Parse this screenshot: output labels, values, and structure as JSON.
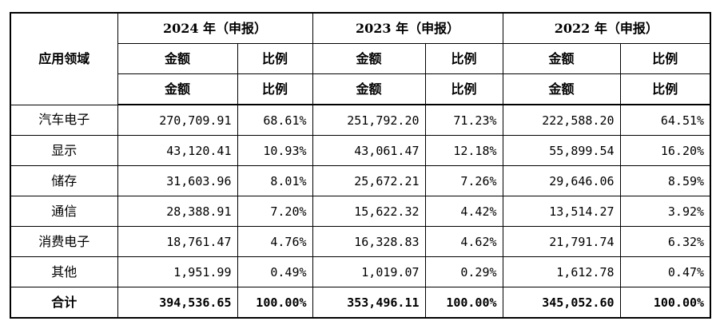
{
  "table": {
    "corner_label": "应用领域",
    "years": [
      {
        "label": "2024 年（申报）",
        "amount_label": "金额",
        "ratio_label": "比例"
      },
      {
        "label": "2023 年（申报）",
        "amount_label": "金额",
        "ratio_label": "比例"
      },
      {
        "label": "2022 年（申报）",
        "amount_label": "金额",
        "ratio_label": "比例"
      }
    ],
    "rows": [
      {
        "name": "汽车电子",
        "cells": [
          "270,709.91",
          "68.61%",
          "251,792.20",
          "71.23%",
          "222,588.20",
          "64.51%"
        ]
      },
      {
        "name": "显示",
        "cells": [
          "43,120.41",
          "10.93%",
          "43,061.47",
          "12.18%",
          "55,899.54",
          "16.20%"
        ]
      },
      {
        "name": "储存",
        "cells": [
          "31,603.96",
          "8.01%",
          "25,672.21",
          "7.26%",
          "29,646.06",
          "8.59%"
        ]
      },
      {
        "name": "通信",
        "cells": [
          "28,388.91",
          "7.20%",
          "15,622.32",
          "4.42%",
          "13,514.27",
          "3.92%"
        ]
      },
      {
        "name": "消费电子",
        "cells": [
          "18,761.47",
          "4.76%",
          "16,328.83",
          "4.62%",
          "21,791.74",
          "6.32%"
        ]
      },
      {
        "name": "其他",
        "cells": [
          "1,951.99",
          "0.49%",
          "1,019.07",
          "0.29%",
          "1,612.78",
          "0.47%"
        ]
      }
    ],
    "total": {
      "name": "合计",
      "cells": [
        "394,536.65",
        "100.00%",
        "353,496.11",
        "100.00%",
        "345,052.60",
        "100.00%"
      ]
    }
  }
}
